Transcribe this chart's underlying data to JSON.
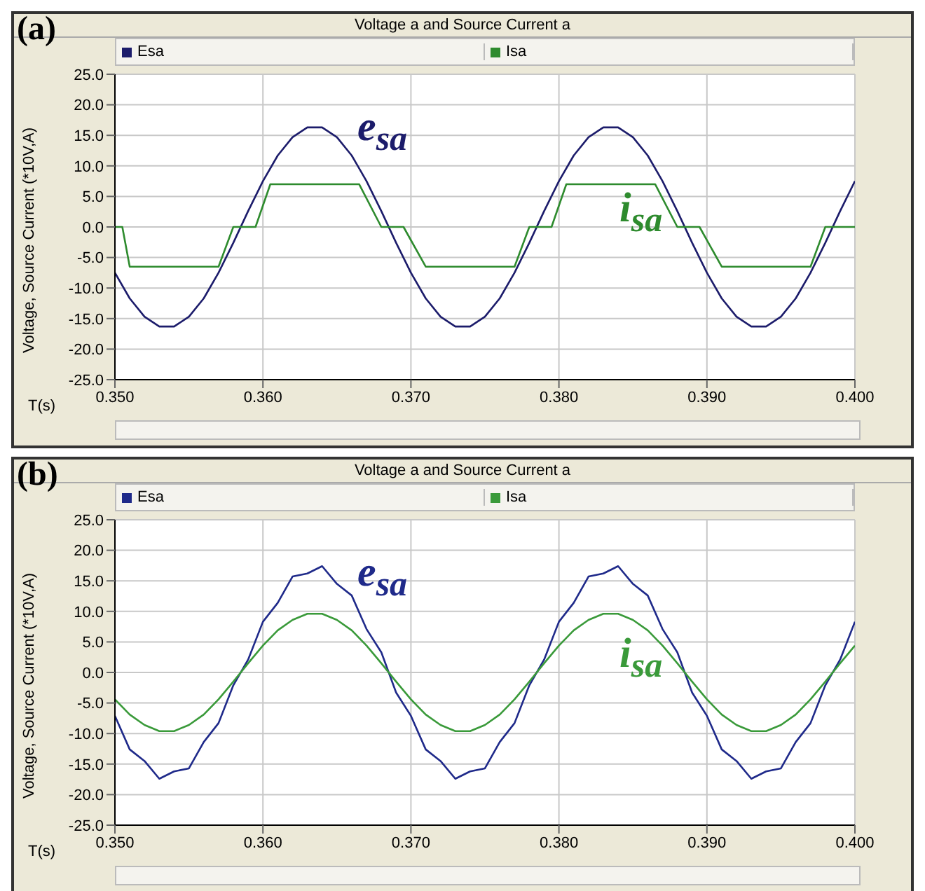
{
  "chart_data": [
    {
      "type": "line",
      "title": "Voltage a and Source Current a",
      "xlabel": "T(s)",
      "ylabel": "Voltage, Source Current (*10V,A)",
      "annotations": [
        "(a)",
        "e$_{sa}$",
        "i$_{sa}$"
      ],
      "x": [
        0.35,
        0.351,
        0.352,
        0.353,
        0.354,
        0.355,
        0.356,
        0.357,
        0.358,
        0.359,
        0.36,
        0.361,
        0.362,
        0.363,
        0.364,
        0.365,
        0.366,
        0.367,
        0.368,
        0.369,
        0.37,
        0.371,
        0.372,
        0.373,
        0.374,
        0.375,
        0.376,
        0.377,
        0.378,
        0.379,
        0.38,
        0.381,
        0.382,
        0.383,
        0.384,
        0.385,
        0.386,
        0.387,
        0.388,
        0.389,
        0.39,
        0.391,
        0.392,
        0.393,
        0.394,
        0.395,
        0.396,
        0.397,
        0.398,
        0.399,
        0.4
      ],
      "series": [
        {
          "name": "Esa",
          "color": "#1c1c6b",
          "values": [
            -7.5,
            -11.7,
            -14.7,
            -16.3,
            -16.3,
            -14.7,
            -11.7,
            -7.5,
            -2.6,
            2.6,
            7.5,
            11.7,
            14.7,
            16.3,
            16.3,
            14.7,
            11.7,
            7.5,
            2.6,
            -2.6,
            -7.5,
            -11.7,
            -14.7,
            -16.3,
            -16.3,
            -14.7,
            -11.7,
            -7.5,
            -2.6,
            2.6,
            7.5,
            11.7,
            14.7,
            16.3,
            16.3,
            14.7,
            11.7,
            7.5,
            2.6,
            -2.6,
            -7.5,
            -11.7,
            -14.7,
            -16.3,
            -16.3,
            -14.7,
            -11.7,
            -7.5,
            -2.6,
            2.6,
            7.5
          ]
        },
        {
          "name": "Isa",
          "color": "#2e8b2e",
          "x": [
            0.35,
            0.3505,
            0.351,
            0.357,
            0.358,
            0.3595,
            0.3605,
            0.3665,
            0.368,
            0.3695,
            0.371,
            0.377,
            0.378,
            0.3795,
            0.3805,
            0.3865,
            0.388,
            0.3895,
            0.391,
            0.397,
            0.398,
            0.4
          ],
          "values": [
            0,
            0,
            -6.5,
            -6.5,
            0,
            0,
            7,
            7,
            0,
            0,
            -6.5,
            -6.5,
            0,
            0,
            7,
            7,
            0,
            0,
            -6.5,
            -6.5,
            0,
            0
          ]
        }
      ],
      "xlim": [
        0.35,
        0.4
      ],
      "xticks": [
        {
          "value": 0.35,
          "label": "0.350"
        },
        {
          "value": 0.36,
          "label": "0.360"
        },
        {
          "value": 0.37,
          "label": "0.370"
        },
        {
          "value": 0.38,
          "label": "0.380"
        },
        {
          "value": 0.39,
          "label": "0.390"
        },
        {
          "value": 0.4,
          "label": "0.400"
        }
      ],
      "ylim": [
        -25,
        25
      ],
      "yticks": [
        {
          "value": -25,
          "label": "-25.0"
        },
        {
          "value": -20,
          "label": "-20.0"
        },
        {
          "value": -15,
          "label": "-15.0"
        },
        {
          "value": -10,
          "label": "-10.0"
        },
        {
          "value": -5,
          "label": "-5.0"
        },
        {
          "value": 0,
          "label": "0.0"
        },
        {
          "value": 5,
          "label": "5.0"
        },
        {
          "value": 10,
          "label": "10.0"
        },
        {
          "value": 15,
          "label": "15.0"
        },
        {
          "value": 20,
          "label": "20.0"
        },
        {
          "value": 25,
          "label": "25.0"
        }
      ],
      "grid": true,
      "legend": "top"
    },
    {
      "type": "line",
      "title": "Voltage a and Source Current a",
      "xlabel": "T(s)",
      "ylabel": "Voltage, Source Current (*10V,A)",
      "annotations": [
        "(b)",
        "e$_{sa}$",
        "i$_{sa}$"
      ],
      "x": [
        0.35,
        0.351,
        0.352,
        0.353,
        0.354,
        0.355,
        0.356,
        0.357,
        0.358,
        0.359,
        0.36,
        0.361,
        0.362,
        0.363,
        0.364,
        0.365,
        0.366,
        0.367,
        0.368,
        0.369,
        0.37,
        0.371,
        0.372,
        0.373,
        0.374,
        0.375,
        0.376,
        0.377,
        0.378,
        0.379,
        0.38,
        0.381,
        0.382,
        0.383,
        0.384,
        0.385,
        0.386,
        0.387,
        0.388,
        0.389,
        0.39,
        0.391,
        0.392,
        0.393,
        0.394,
        0.395,
        0.396,
        0.397,
        0.398,
        0.399,
        0.4
      ],
      "series": [
        {
          "name": "Esa",
          "color": "#1f2a8a",
          "values": [
            -7.1,
            -12.6,
            -14.5,
            -17.4,
            -16.2,
            -15.7,
            -11.4,
            -8.3,
            -2.1,
            2.1,
            8.3,
            11.4,
            15.7,
            16.2,
            17.4,
            14.5,
            12.6,
            7.1,
            3.3,
            -3.3,
            -7.1,
            -12.6,
            -14.5,
            -17.4,
            -16.2,
            -15.7,
            -11.4,
            -8.3,
            -2.1,
            2.1,
            8.3,
            11.4,
            15.7,
            16.2,
            17.4,
            14.5,
            12.6,
            7.1,
            3.3,
            -3.3,
            -7.1,
            -12.6,
            -14.5,
            -17.4,
            -16.2,
            -15.7,
            -11.4,
            -8.3,
            -2.1,
            2.1,
            8.3
          ]
        },
        {
          "name": "Isa",
          "color": "#3a9a3a",
          "values": [
            -4.4,
            -6.9,
            -8.6,
            -9.6,
            -9.6,
            -8.6,
            -6.9,
            -4.4,
            -1.5,
            1.5,
            4.4,
            6.9,
            8.6,
            9.6,
            9.6,
            8.6,
            6.9,
            4.4,
            1.5,
            -1.5,
            -4.4,
            -6.9,
            -8.6,
            -9.6,
            -9.6,
            -8.6,
            -6.9,
            -4.4,
            -1.5,
            1.5,
            4.4,
            6.9,
            8.6,
            9.6,
            9.6,
            8.6,
            6.9,
            4.4,
            1.5,
            -1.5,
            -4.4,
            -6.9,
            -8.6,
            -9.6,
            -9.6,
            -8.6,
            -6.9,
            -4.4,
            -1.5,
            1.5,
            4.4
          ]
        }
      ],
      "xlim": [
        0.35,
        0.4
      ],
      "xticks": [
        {
          "value": 0.35,
          "label": "0.350"
        },
        {
          "value": 0.36,
          "label": "0.360"
        },
        {
          "value": 0.37,
          "label": "0.370"
        },
        {
          "value": 0.38,
          "label": "0.380"
        },
        {
          "value": 0.39,
          "label": "0.390"
        },
        {
          "value": 0.4,
          "label": "0.400"
        }
      ],
      "ylim": [
        -25,
        25
      ],
      "yticks": [
        {
          "value": -25,
          "label": "-25.0"
        },
        {
          "value": -20,
          "label": "-20.0"
        },
        {
          "value": -15,
          "label": "-15.0"
        },
        {
          "value": -10,
          "label": "-10.0"
        },
        {
          "value": -5,
          "label": "-5.0"
        },
        {
          "value": 0,
          "label": "0.0"
        },
        {
          "value": 5,
          "label": "5.0"
        },
        {
          "value": 10,
          "label": "10.0"
        },
        {
          "value": 15,
          "label": "15.0"
        },
        {
          "value": 20,
          "label": "20.0"
        },
        {
          "value": 25,
          "label": "25.0"
        }
      ],
      "grid": true,
      "legend": "top"
    }
  ]
}
